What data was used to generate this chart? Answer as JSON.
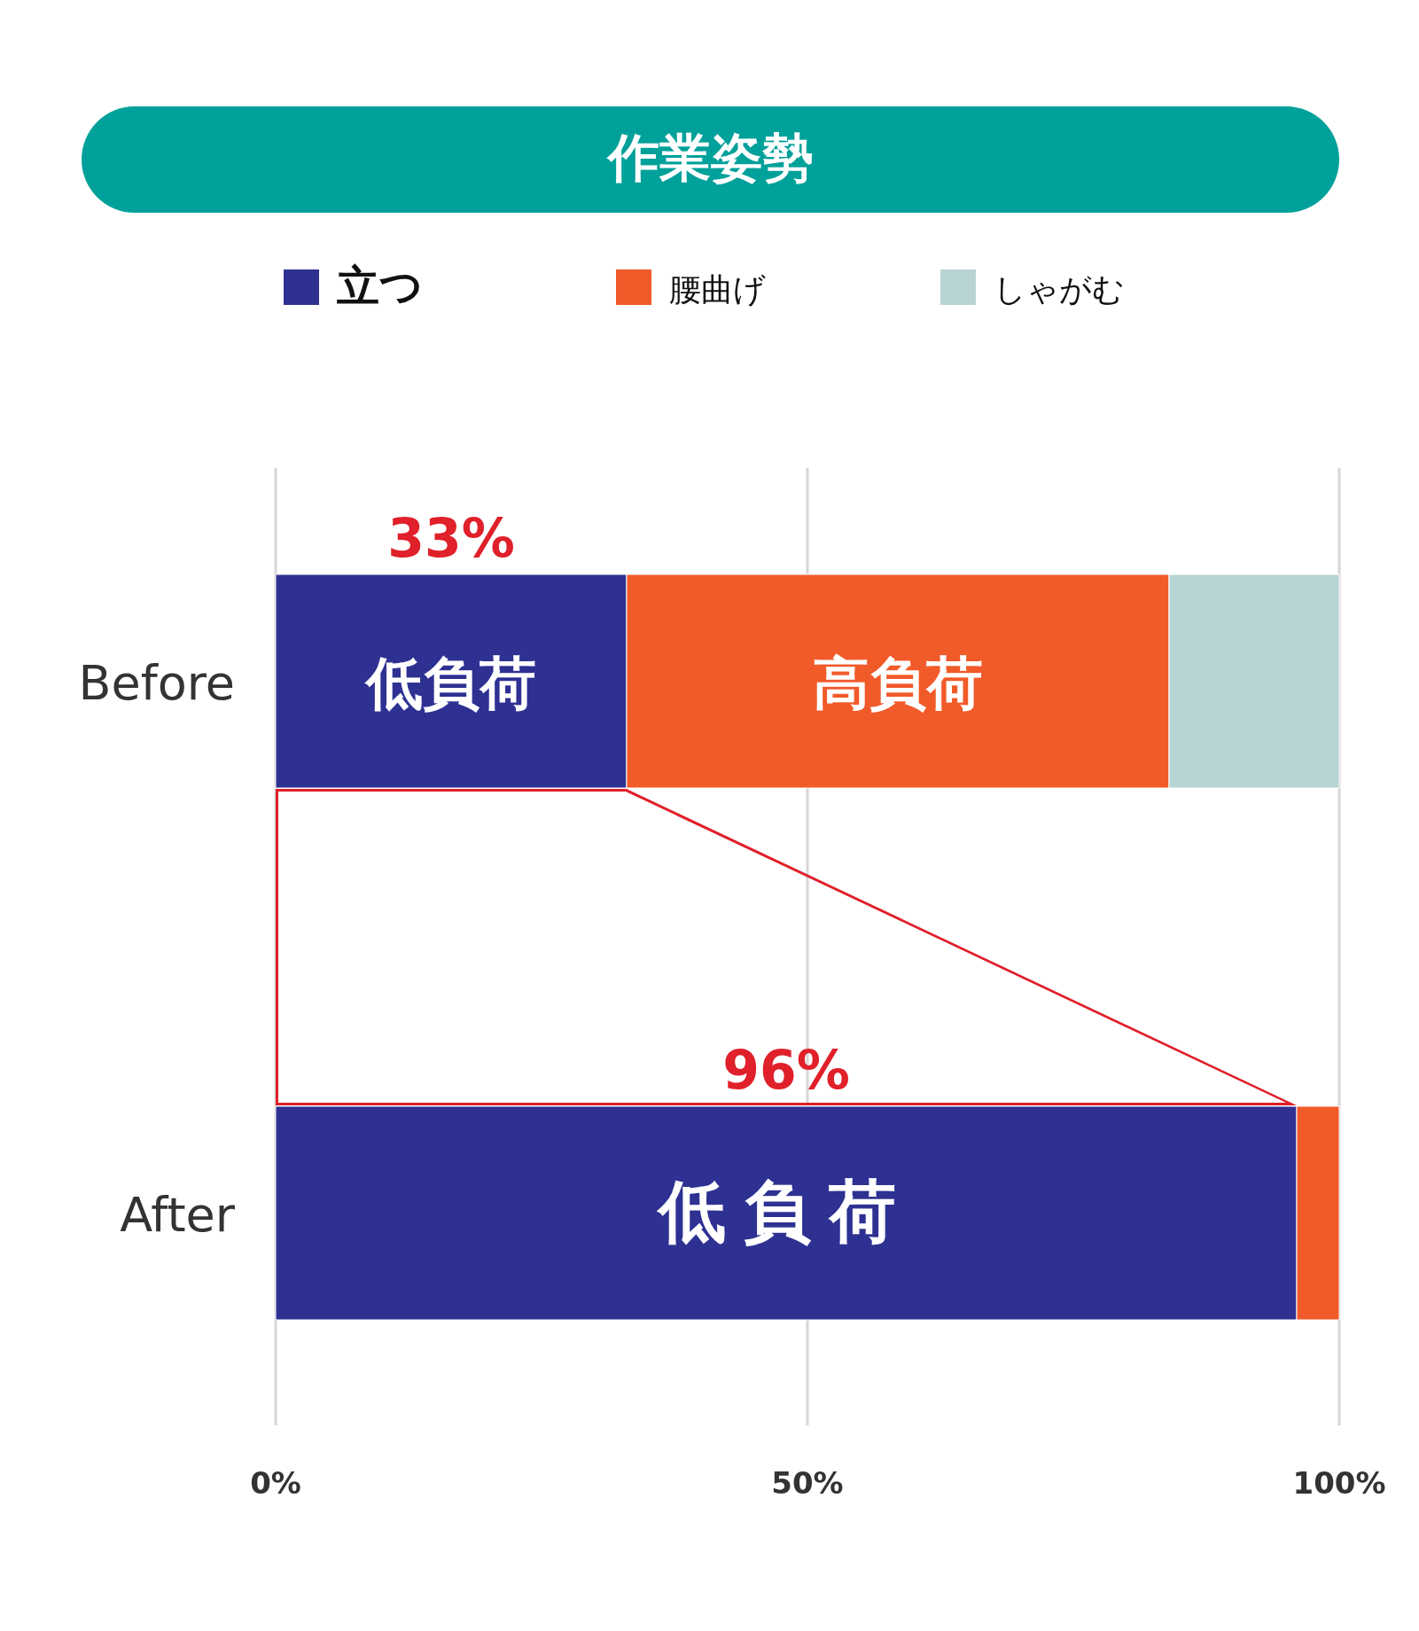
{
  "chart_data": {
    "type": "bar",
    "orientation": "horizontal",
    "stacked": true,
    "title": "作業姿勢",
    "categories": [
      "Before",
      "After"
    ],
    "series": [
      {
        "name": "立つ",
        "color": "#2e3192",
        "values": [
          33,
          96
        ],
        "value_labels": [
          "33%",
          "96%"
        ]
      },
      {
        "name": "腰曲げ",
        "color": "#f15a29",
        "values": [
          51,
          4
        ]
      },
      {
        "name": "しゃがむ",
        "color": "#b8d4d4",
        "values": [
          16,
          0
        ]
      }
    ],
    "xlim": [
      0,
      100
    ],
    "xticks": [
      {
        "value": 0,
        "label": "0%"
      },
      {
        "value": 50,
        "label": "50%"
      },
      {
        "value": 100,
        "label": "100%"
      }
    ],
    "grid": "x",
    "legend": "top",
    "annotations": [
      "低負荷",
      "高負荷",
      "低負荷"
    ]
  }
}
